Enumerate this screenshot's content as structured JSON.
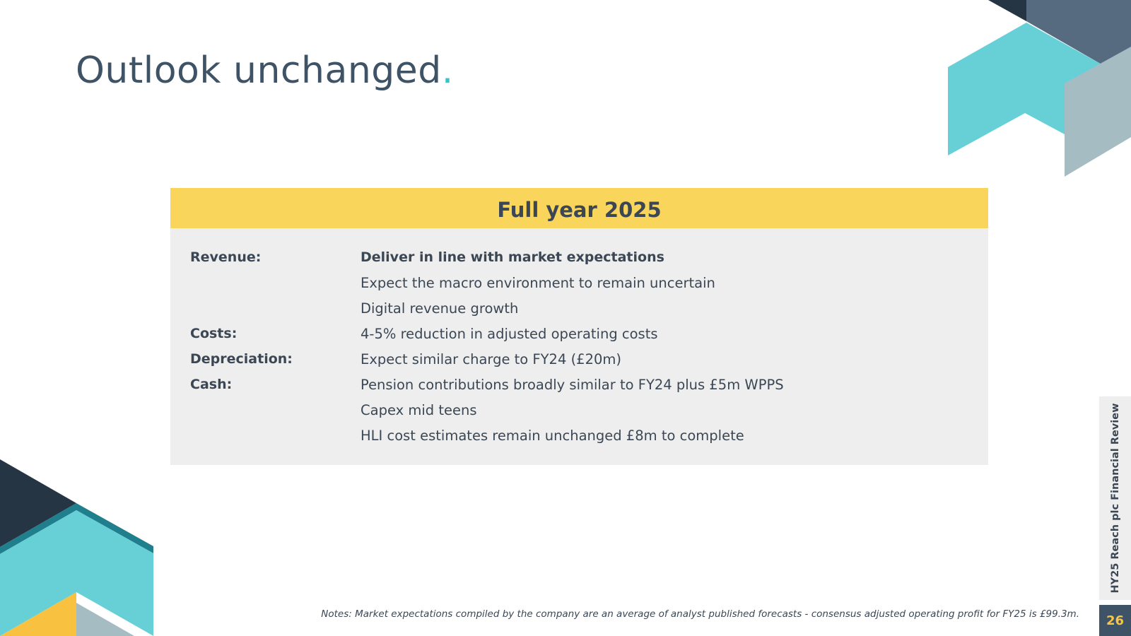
{
  "slide": {
    "title": "Outlook unchanged",
    "title_dot": ".",
    "side_label": "HY25 Reach plc Financial Review",
    "page_number": "26"
  },
  "panel": {
    "header": "Full year 2025",
    "rows": [
      {
        "label": "Revenue:",
        "text": "Deliver in line with market expectations"
      },
      {
        "label": "",
        "text": "Expect the macro environment to remain uncertain"
      },
      {
        "label": "",
        "text": "Digital revenue growth"
      },
      {
        "label": "Costs:",
        "text": "4-5% reduction in adjusted operating costs"
      },
      {
        "label": "Depreciation:",
        "text": "Expect similar charge to FY24 (£20m)"
      },
      {
        "label": "Cash:",
        "text": "Pension contributions broadly similar to FY24 plus £5m WPPS"
      },
      {
        "label": "",
        "text": "Capex mid teens"
      },
      {
        "label": "",
        "text": "HLI cost estimates remain unchanged £8m to complete"
      }
    ]
  },
  "notes": "Notes: Market expectations compiled by the company are an average of analyst published forecasts - consensus adjusted operating profit for FY25 is £99.3m.",
  "colors": {
    "title": "#3e5366",
    "accent_teal": "#3cc0c7",
    "header_yellow": "#fad55c",
    "panel_grey": "#eeeeee",
    "navy": "#263544",
    "slate": "#566b80",
    "light_teal": "#66d0d6",
    "grey_blue": "#a5bcc3",
    "orange": "#f9c140"
  }
}
